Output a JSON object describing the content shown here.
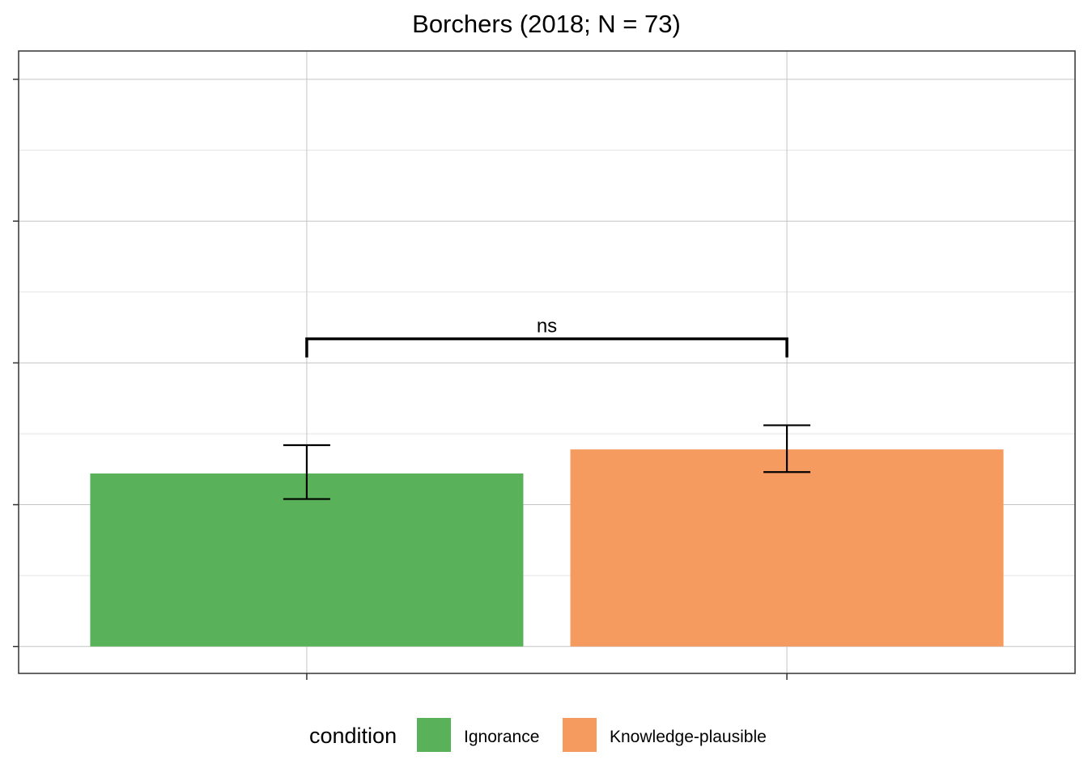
{
  "chart_data": {
    "type": "bar",
    "title": "Borchers (2018; N = 73)",
    "xlabel": "",
    "ylabel": "",
    "categories": [
      "Ignorance",
      "Knowledge-plausible"
    ],
    "values": [
      1.22,
      1.39
    ],
    "error_bars": [
      {
        "low": 1.04,
        "high": 1.42
      },
      {
        "low": 1.23,
        "high": 1.56
      }
    ],
    "ylim": [
      -0.19,
      4.2
    ],
    "grid": true,
    "colors": [
      "#59b259",
      "#f59b5f"
    ],
    "legend": {
      "title": "condition",
      "position": "bottom",
      "entries": [
        "Ignorance",
        "Knowledge-plausible"
      ]
    },
    "significance": {
      "label": "ns",
      "from": 0,
      "to": 1,
      "y": 2.17
    }
  }
}
